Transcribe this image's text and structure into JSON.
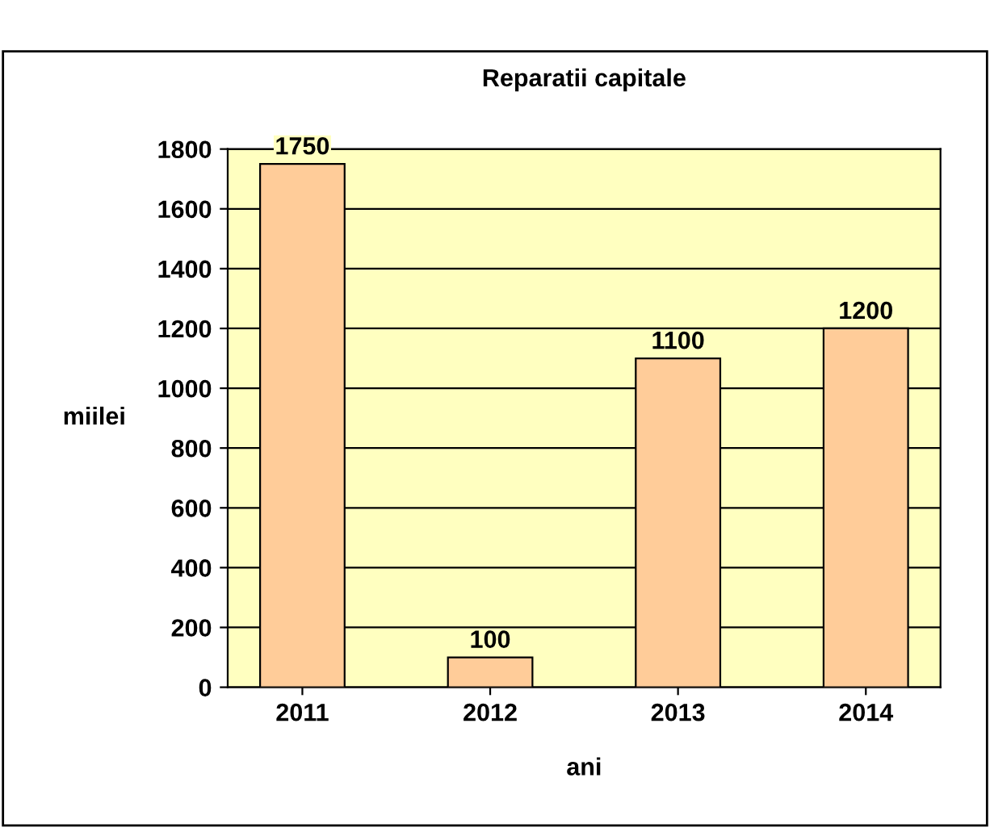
{
  "chart_data": {
    "type": "bar",
    "title": "Reparatii capitale",
    "xlabel": "ani",
    "ylabel": "miilei",
    "categories": [
      "2011",
      "2012",
      "2013",
      "2014"
    ],
    "values": [
      1750,
      100,
      1100,
      1200
    ],
    "color": "#ffcc99",
    "ylim": [
      0,
      1800
    ],
    "yticks": [
      0,
      200,
      400,
      600,
      800,
      1000,
      1200,
      1400,
      1600,
      1800
    ],
    "grid": "y",
    "data_labels": true,
    "legend": false
  }
}
